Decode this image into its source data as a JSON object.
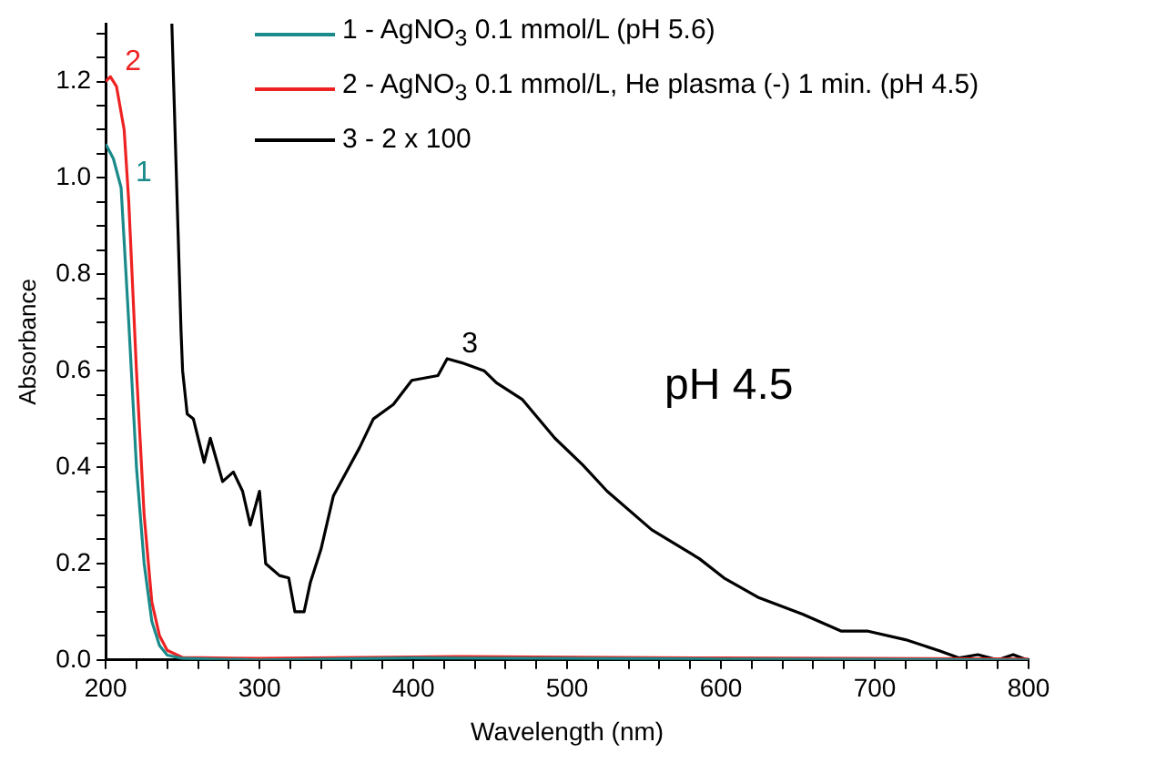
{
  "chart_data": {
    "type": "line",
    "xlabel": "Wavelength (nm)",
    "ylabel": "Absorbance",
    "xlim": [
      200,
      800
    ],
    "xticks": [
      200,
      {
        "value": 220,
        "label": null
      },
      {
        "value": 240,
        "label": null
      },
      {
        "value": 260,
        "label": null
      },
      {
        "value": 280,
        "label": null
      },
      300,
      {
        "value": 320,
        "label": null
      },
      {
        "value": 340,
        "label": null
      },
      {
        "value": 360,
        "label": null
      },
      {
        "value": 380,
        "label": null
      },
      400,
      {
        "value": 420,
        "label": null
      },
      {
        "value": 440,
        "label": null
      },
      {
        "value": 460,
        "label": null
      },
      {
        "value": 480,
        "label": null
      },
      500,
      {
        "value": 520,
        "label": null
      },
      {
        "value": 540,
        "label": null
      },
      {
        "value": 560,
        "label": null
      },
      {
        "value": 580,
        "label": null
      },
      600,
      {
        "value": 620,
        "label": null
      },
      {
        "value": 640,
        "label": null
      },
      {
        "value": 660,
        "label": null
      },
      {
        "value": 680,
        "label": null
      },
      700,
      {
        "value": 720,
        "label": null
      },
      {
        "value": 740,
        "label": null
      },
      {
        "value": 760,
        "label": null
      },
      {
        "value": 780,
        "label": null
      },
      800
    ],
    "ylim": [
      0,
      1.32
    ],
    "yticks": [
      {
        "value": 0,
        "label": "0.0"
      },
      {
        "value": 0.05,
        "label": null
      },
      {
        "value": 0.1,
        "label": null
      },
      {
        "value": 0.15,
        "label": null
      },
      {
        "value": 0.2,
        "label": "0.2"
      },
      {
        "value": 0.25,
        "label": null
      },
      {
        "value": 0.3,
        "label": null
      },
      {
        "value": 0.35,
        "label": null
      },
      {
        "value": 0.4,
        "label": "0.4"
      },
      {
        "value": 0.45,
        "label": null
      },
      {
        "value": 0.5,
        "label": null
      },
      {
        "value": 0.55,
        "label": null
      },
      {
        "value": 0.6,
        "label": "0.6"
      },
      {
        "value": 0.65,
        "label": null
      },
      {
        "value": 0.7,
        "label": null
      },
      {
        "value": 0.75,
        "label": null
      },
      {
        "value": 0.8,
        "label": "0.8"
      },
      {
        "value": 0.85,
        "label": null
      },
      {
        "value": 0.9,
        "label": null
      },
      {
        "value": 0.95,
        "label": null
      },
      {
        "value": 1.0,
        "label": "1.0"
      },
      {
        "value": 1.05,
        "label": null
      },
      {
        "value": 1.1,
        "label": null
      },
      {
        "value": 1.15,
        "label": null
      },
      {
        "value": 1.2,
        "label": "1.2"
      },
      {
        "value": 1.25,
        "label": null
      },
      {
        "value": 1.3,
        "label": null
      }
    ],
    "grid": false,
    "legend": "top",
    "marker": "none",
    "line_style": "solid",
    "series": [
      {
        "name": "1 - AgNO$_{3}$ 0.1 mmol/L (pH 5.6)",
        "color": "#1a8a8a",
        "x": [
          200,
          205,
          210,
          215,
          220,
          225,
          230,
          235,
          240,
          250,
          300,
          400,
          500,
          600,
          800
        ],
        "values": [
          1.07,
          1.04,
          0.98,
          0.7,
          0.4,
          0.2,
          0.08,
          0.03,
          0.01,
          0.003,
          0.0,
          0.004,
          0.003,
          0.002,
          0.0
        ]
      },
      {
        "name": "2 - AgNO$_{3}$ 0.1 mmol/L, He plasma (-) 1 min. (pH 4.5)",
        "color": "#ee2222",
        "x": [
          200,
          203,
          207,
          212,
          215,
          220,
          225,
          230,
          235,
          240,
          250,
          300,
          430,
          600,
          800
        ],
        "values": [
          1.2,
          1.21,
          1.19,
          1.1,
          0.95,
          0.6,
          0.3,
          0.12,
          0.05,
          0.02,
          0.005,
          0.003,
          0.007,
          0.004,
          0.002
        ]
      },
      {
        "name": "3 -  2 x 100",
        "color": "#000000",
        "x": [
          243,
          249,
          250,
          253,
          257,
          264,
          268,
          276,
          283,
          289,
          294,
          300,
          304,
          313,
          319,
          323,
          329,
          333,
          340,
          348,
          365,
          374,
          387,
          399,
          416,
          422,
          433,
          446,
          454,
          471,
          492,
          510,
          526,
          555,
          586,
          602,
          624,
          653,
          678,
          695,
          720,
          742,
          755,
          767,
          780,
          790,
          799
        ],
        "values": [
          1.32,
          0.68,
          0.6,
          0.51,
          0.5,
          0.41,
          0.46,
          0.37,
          0.39,
          0.35,
          0.28,
          0.35,
          0.2,
          0.175,
          0.17,
          0.1,
          0.1,
          0.16,
          0.23,
          0.34,
          0.44,
          0.5,
          0.53,
          0.58,
          0.59,
          0.625,
          0.615,
          0.6,
          0.575,
          0.54,
          0.46,
          0.405,
          0.35,
          0.27,
          0.21,
          0.17,
          0.13,
          0.095,
          0.06,
          0.06,
          0.042,
          0.019,
          0.004,
          0.011,
          0.0,
          0.011,
          0.0
        ]
      }
    ],
    "annotations": [
      {
        "text": "1",
        "x": 210,
        "y": 0.98
      },
      {
        "text": "2",
        "x": 203,
        "y": 1.21
      },
      {
        "text": "3",
        "x": 422,
        "y": 0.625
      },
      "pH 4.5"
    ]
  }
}
